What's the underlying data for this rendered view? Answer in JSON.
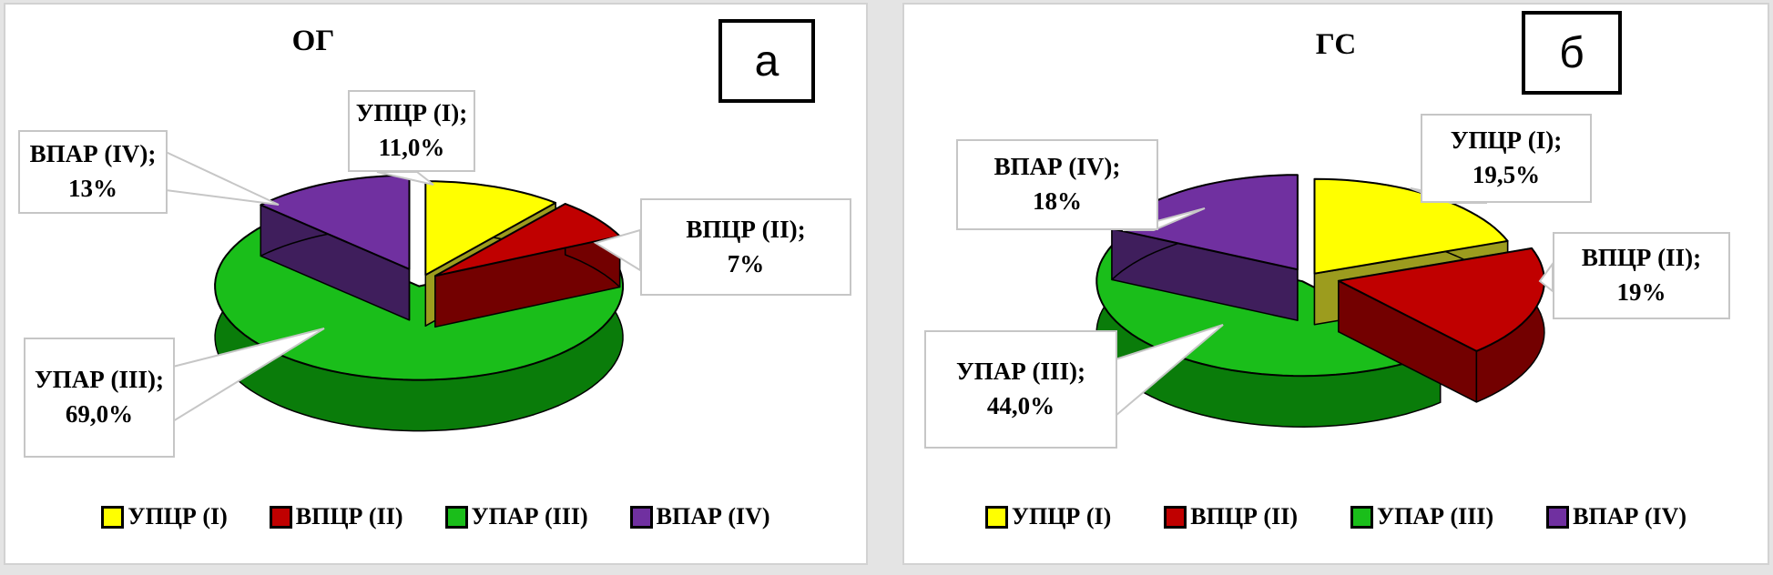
{
  "chart_data": [
    {
      "type": "pie",
      "title": "ОГ",
      "tag": "а",
      "legend_position": "bottom",
      "slices": [
        {
          "label": "УПЦР (I)",
          "value": 11.0,
          "callout_line1": "УПЦР (I);",
          "callout_line2": "11,0%",
          "color": "#FFFF00",
          "side_color": "#9C9C1E"
        },
        {
          "label": "ВПЦР (II)",
          "value": 7,
          "callout_line1": "ВПЦР (II);",
          "callout_line2": "7%",
          "color": "#C00000",
          "side_color": "#730000"
        },
        {
          "label": "УПАР (III)",
          "value": 69.0,
          "callout_line1": "УПАР (III);",
          "callout_line2": "69,0%",
          "color": "#1ABE1A",
          "side_color": "#0A7C0A"
        },
        {
          "label": "ВПАР (IV)",
          "value": 13,
          "callout_line1": "ВПАР (IV);",
          "callout_line2": "13%",
          "color": "#7030A0",
          "side_color": "#3F1E5C"
        }
      ]
    },
    {
      "type": "pie",
      "title": "ГС",
      "tag": "б",
      "legend_position": "bottom",
      "slices": [
        {
          "label": "УПЦР (I)",
          "value": 19.5,
          "callout_line1": "УПЦР (I);",
          "callout_line2": "19,5%",
          "color": "#FFFF00",
          "side_color": "#9C9C1E"
        },
        {
          "label": "ВПЦР (II)",
          "value": 19,
          "callout_line1": "ВПЦР (II);",
          "callout_line2": "19%",
          "color": "#C00000",
          "side_color": "#730000"
        },
        {
          "label": "УПАР (III)",
          "value": 44.0,
          "callout_line1": "УПАР (III);",
          "callout_line2": "44,0%",
          "color": "#1ABE1A",
          "side_color": "#0A7C0A"
        },
        {
          "label": "ВПАР (IV)",
          "value": 18,
          "callout_line1": "ВПАР (IV);",
          "callout_line2": "18%",
          "color": "#7030A0",
          "side_color": "#3F1E5C"
        }
      ]
    }
  ]
}
